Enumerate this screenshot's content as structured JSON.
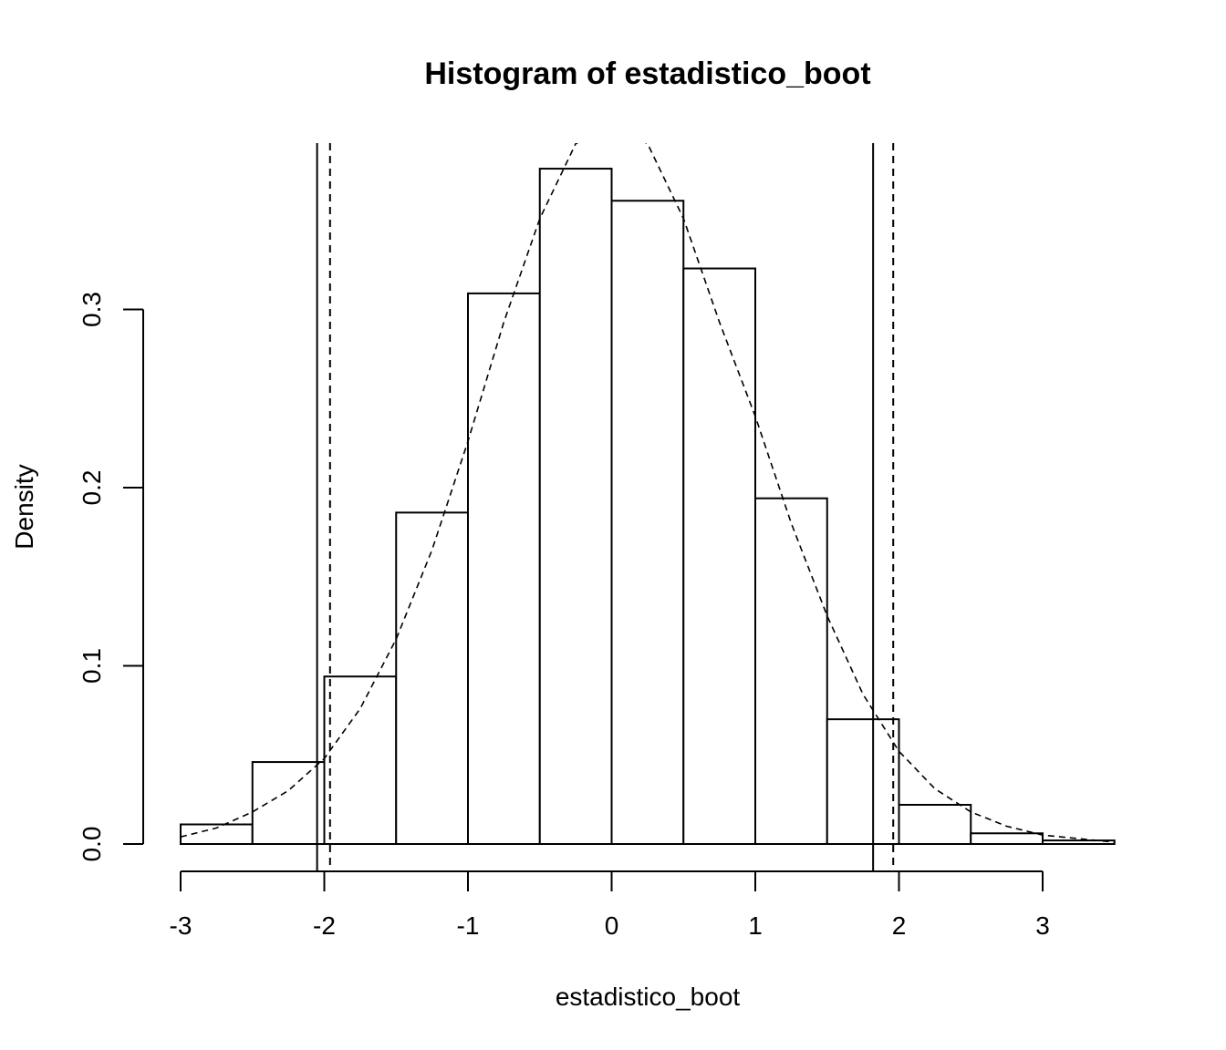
{
  "chart_data": {
    "type": "histogram",
    "title": "Histogram of estadistico_boot",
    "xlabel": "estadistico_boot",
    "ylabel": "Density",
    "xlim": [
      -3,
      3.5
    ],
    "ylim": [
      0,
      0.4
    ],
    "x_ticks": [
      -3,
      -2,
      -1,
      0,
      1,
      2,
      3
    ],
    "x_tick_labels": [
      "-3",
      "-2",
      "-1",
      "0",
      "1",
      "2",
      "3"
    ],
    "y_ticks": [
      0.0,
      0.1,
      0.2,
      0.3
    ],
    "y_tick_labels": [
      "0.0",
      "0.1",
      "0.2",
      "0.3"
    ],
    "bins": [
      {
        "x0": -3.0,
        "x1": -2.5,
        "density": 0.011
      },
      {
        "x0": -2.5,
        "x1": -2.0,
        "density": 0.046
      },
      {
        "x0": -2.0,
        "x1": -1.5,
        "density": 0.094
      },
      {
        "x0": -1.5,
        "x1": -1.0,
        "density": 0.186
      },
      {
        "x0": -1.0,
        "x1": -0.5,
        "density": 0.309
      },
      {
        "x0": -0.5,
        "x1": 0.0,
        "density": 0.379
      },
      {
        "x0": 0.0,
        "x1": 0.5,
        "density": 0.361
      },
      {
        "x0": 0.5,
        "x1": 1.0,
        "density": 0.323
      },
      {
        "x0": 1.0,
        "x1": 1.5,
        "density": 0.194
      },
      {
        "x0": 1.5,
        "x1": 2.0,
        "density": 0.07
      },
      {
        "x0": 2.0,
        "x1": 2.5,
        "density": 0.022
      },
      {
        "x0": 2.5,
        "x1": 3.0,
        "density": 0.006
      },
      {
        "x0": 3.0,
        "x1": 3.5,
        "density": 0.002
      }
    ],
    "density_curve": {
      "style": "dashed",
      "description_type": "normal",
      "x_range": [
        -3,
        3.5
      ],
      "points": [
        [
          -3.0,
          0.004
        ],
        [
          -2.75,
          0.009
        ],
        [
          -2.5,
          0.018
        ],
        [
          -2.25,
          0.03
        ],
        [
          -2.0,
          0.048
        ],
        [
          -1.75,
          0.076
        ],
        [
          -1.5,
          0.115
        ],
        [
          -1.25,
          0.165
        ],
        [
          -1.0,
          0.226
        ],
        [
          -0.75,
          0.293
        ],
        [
          -0.5,
          0.351
        ],
        [
          -0.25,
          0.393
        ],
        [
          0.0,
          0.404
        ],
        [
          0.25,
          0.393
        ],
        [
          0.5,
          0.351
        ],
        [
          0.75,
          0.293
        ],
        [
          1.0,
          0.24
        ],
        [
          1.25,
          0.18
        ],
        [
          1.5,
          0.128
        ],
        [
          1.75,
          0.084
        ],
        [
          2.0,
          0.052
        ],
        [
          2.25,
          0.031
        ],
        [
          2.5,
          0.018
        ],
        [
          2.75,
          0.01
        ],
        [
          3.0,
          0.005
        ],
        [
          3.25,
          0.003
        ],
        [
          3.5,
          0.001
        ]
      ]
    },
    "vertical_lines": [
      {
        "x": -2.05,
        "style": "solid"
      },
      {
        "x": -1.96,
        "style": "dashed"
      },
      {
        "x": 1.82,
        "style": "solid"
      },
      {
        "x": 1.96,
        "style": "dashed"
      }
    ],
    "grid": false,
    "legend": "none",
    "colors": {
      "bar_fill": "#ffffff",
      "stroke": "#000000",
      "background": "#ffffff"
    }
  }
}
